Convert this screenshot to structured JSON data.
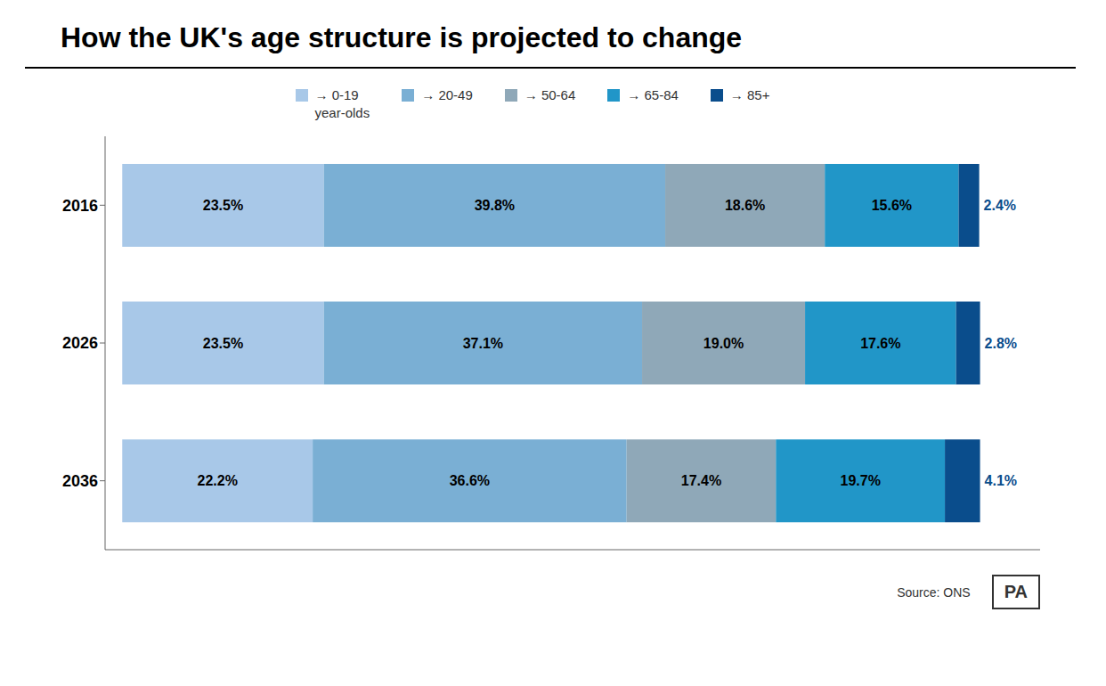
{
  "chart_data": {
    "type": "bar",
    "title": "How the UK's age structure is projected to change",
    "orientation": "horizontal",
    "stacked": true,
    "categories": [
      "2016",
      "2026",
      "2036"
    ],
    "series": [
      {
        "name": "→ 0-19\nyear-olds",
        "color": "#a8c8e8",
        "values": [
          23.5,
          23.5,
          22.2
        ],
        "value_labels": [
          "23.5%",
          "23.5%",
          "22.2%"
        ]
      },
      {
        "name": "→ 20-49",
        "color": "#7aafd4",
        "values": [
          39.8,
          37.1,
          36.6
        ],
        "value_labels": [
          "39.8%",
          "37.1%",
          "36.6%"
        ]
      },
      {
        "name": "→ 50-64",
        "color": "#8fa8b8",
        "values": [
          18.6,
          19.0,
          17.4
        ],
        "value_labels": [
          "18.6%",
          "19.0%",
          "17.4%"
        ]
      },
      {
        "name": "→ 65-84",
        "color": "#2196c8",
        "values": [
          15.6,
          17.6,
          19.7
        ],
        "value_labels": [
          "15.6%",
          "17.6%",
          "19.7%"
        ]
      },
      {
        "name": "→ 85+",
        "color": "#0a4d8c",
        "values": [
          2.4,
          2.8,
          4.1
        ],
        "value_labels": [
          "2.4%",
          "2.8%",
          "4.1%"
        ]
      }
    ],
    "xlim": [
      -2,
      107
    ],
    "tick_labels": "y",
    "grid": false,
    "legend": "top",
    "data_labels": true,
    "annotations": [
      "Source: ONS",
      "PA"
    ]
  }
}
